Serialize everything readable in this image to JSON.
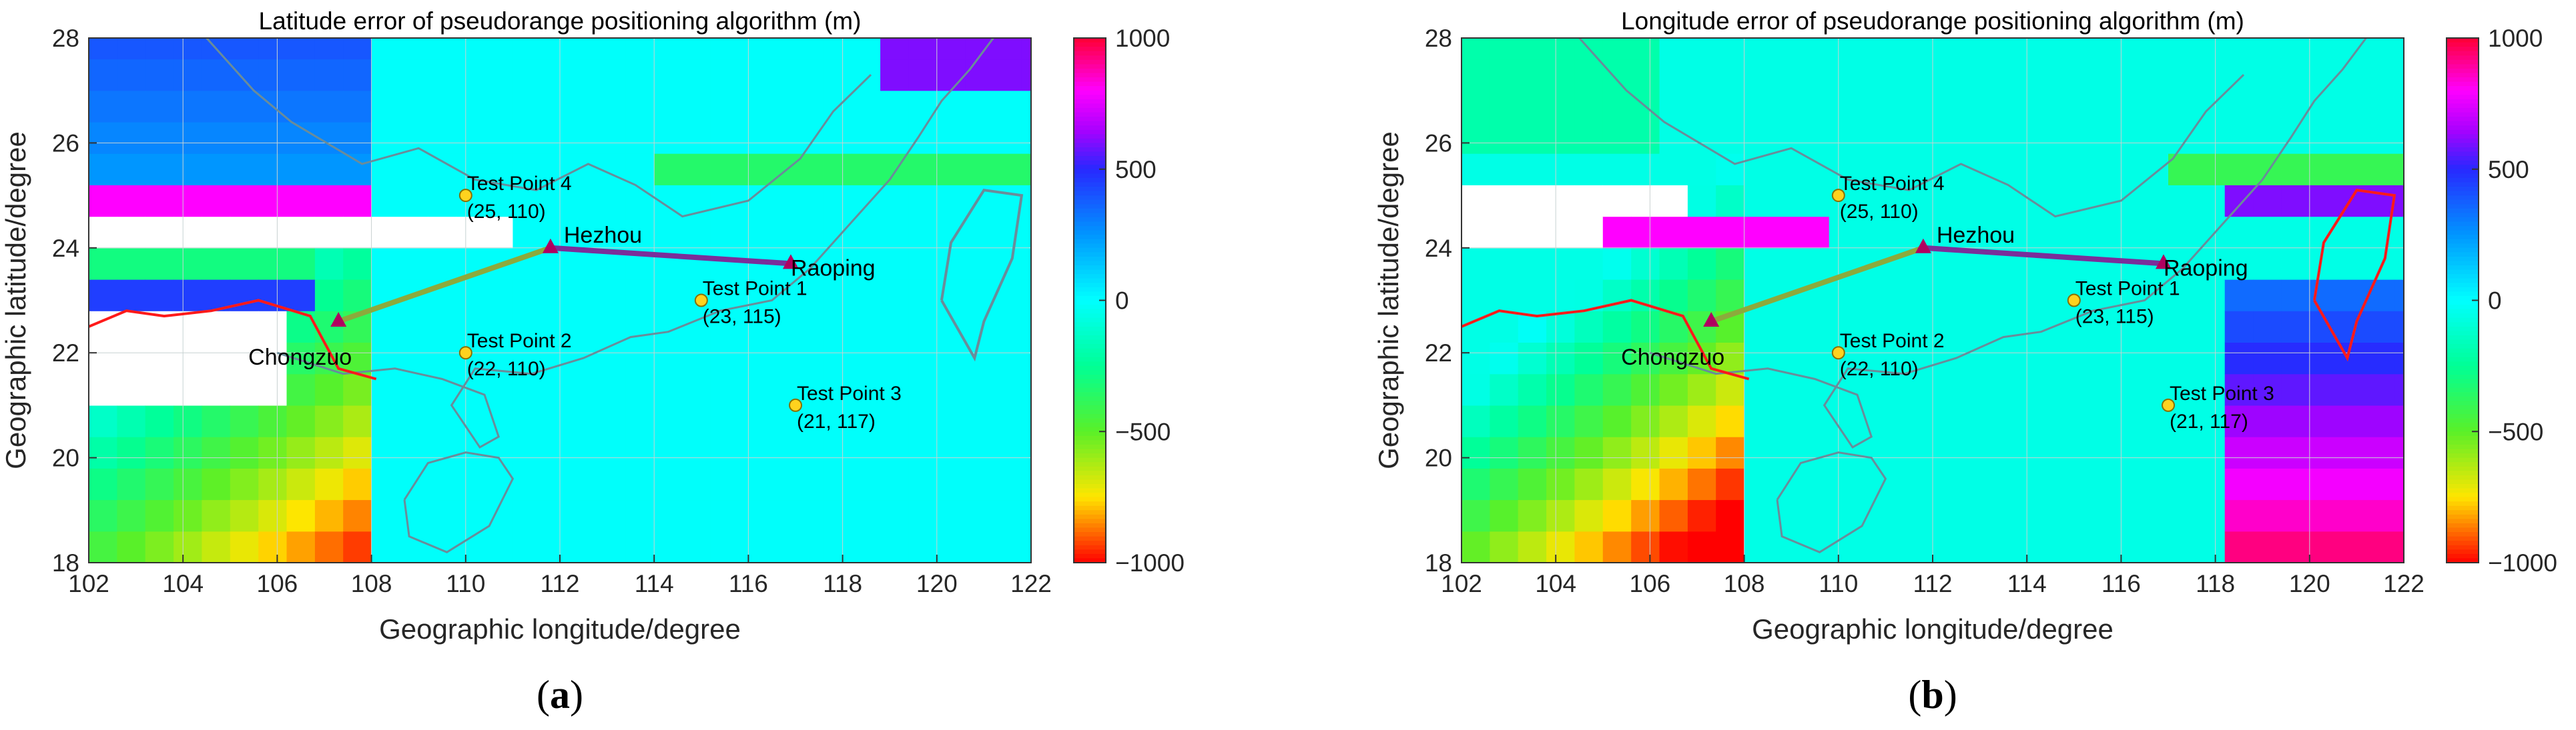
{
  "figure": {
    "panels": [
      {
        "paren_open": "(",
        "letter": "a",
        "paren_close": ")"
      },
      {
        "paren_open": "(",
        "letter": "b",
        "paren_close": ")"
      }
    ]
  },
  "chart_data": [
    {
      "type": "heatmap",
      "title": "Latitude error of pseudorange positioning algorithm (m)",
      "xlabel": "Geographic longitude/degree",
      "ylabel": "Geographic latitude/degree",
      "xlim": [
        102,
        122
      ],
      "ylim": [
        18,
        28
      ],
      "xticks": [
        "102",
        "104",
        "106",
        "108",
        "110",
        "112",
        "114",
        "116",
        "118",
        "120",
        "122"
      ],
      "yticks": [
        "18",
        "20",
        "22",
        "24",
        "26",
        "28"
      ],
      "colorbar": {
        "min": -1000,
        "max": 1000,
        "ticks": [
          "1000",
          "500",
          "0",
          "−500",
          "−1000"
        ]
      },
      "stations": [
        {
          "name": "Chongzuo",
          "lon": 107.3,
          "lat": 22.6
        },
        {
          "name": "Hezhou",
          "lon": 111.8,
          "lat": 24.0
        },
        {
          "name": "Raoping",
          "lon": 116.9,
          "lat": 23.7
        }
      ],
      "test_points": [
        {
          "name": "Test Point 1",
          "coords": "(23, 115)",
          "lon": 115,
          "lat": 23
        },
        {
          "name": "Test Point 2",
          "coords": "(22, 110)",
          "lon": 110,
          "lat": 22
        },
        {
          "name": "Test Point 3",
          "coords": "(21, 117)",
          "lon": 117,
          "lat": 21
        },
        {
          "name": "Test Point 4",
          "coords": "(25, 110)",
          "lon": 110,
          "lat": 25
        }
      ]
    },
    {
      "type": "heatmap",
      "title": "Longitude error of pseudorange positioning algorithm (m)",
      "xlabel": "Geographic longitude/degree",
      "ylabel": "Geographic latitude/degree",
      "xlim": [
        102,
        122
      ],
      "ylim": [
        18,
        28
      ],
      "xticks": [
        "102",
        "104",
        "106",
        "108",
        "110",
        "112",
        "114",
        "116",
        "118",
        "120",
        "122"
      ],
      "yticks": [
        "18",
        "20",
        "22",
        "24",
        "26",
        "28"
      ],
      "colorbar": {
        "min": -1000,
        "max": 1000,
        "ticks": [
          "1000",
          "500",
          "0",
          "−500",
          "−1000"
        ]
      },
      "stations": [
        {
          "name": "Chongzuo",
          "lon": 107.3,
          "lat": 22.6
        },
        {
          "name": "Hezhou",
          "lon": 111.8,
          "lat": 24.0
        },
        {
          "name": "Raoping",
          "lon": 116.9,
          "lat": 23.7
        }
      ],
      "test_points": [
        {
          "name": "Test Point 1",
          "coords": "(23, 115)",
          "lon": 115,
          "lat": 23
        },
        {
          "name": "Test Point 2",
          "coords": "(22, 110)",
          "lon": 110,
          "lat": 22
        },
        {
          "name": "Test Point 3",
          "coords": "(21, 117)",
          "lon": 117,
          "lat": 21
        },
        {
          "name": "Test Point 4",
          "coords": "(25, 110)",
          "lon": 110,
          "lat": 25
        }
      ]
    }
  ]
}
